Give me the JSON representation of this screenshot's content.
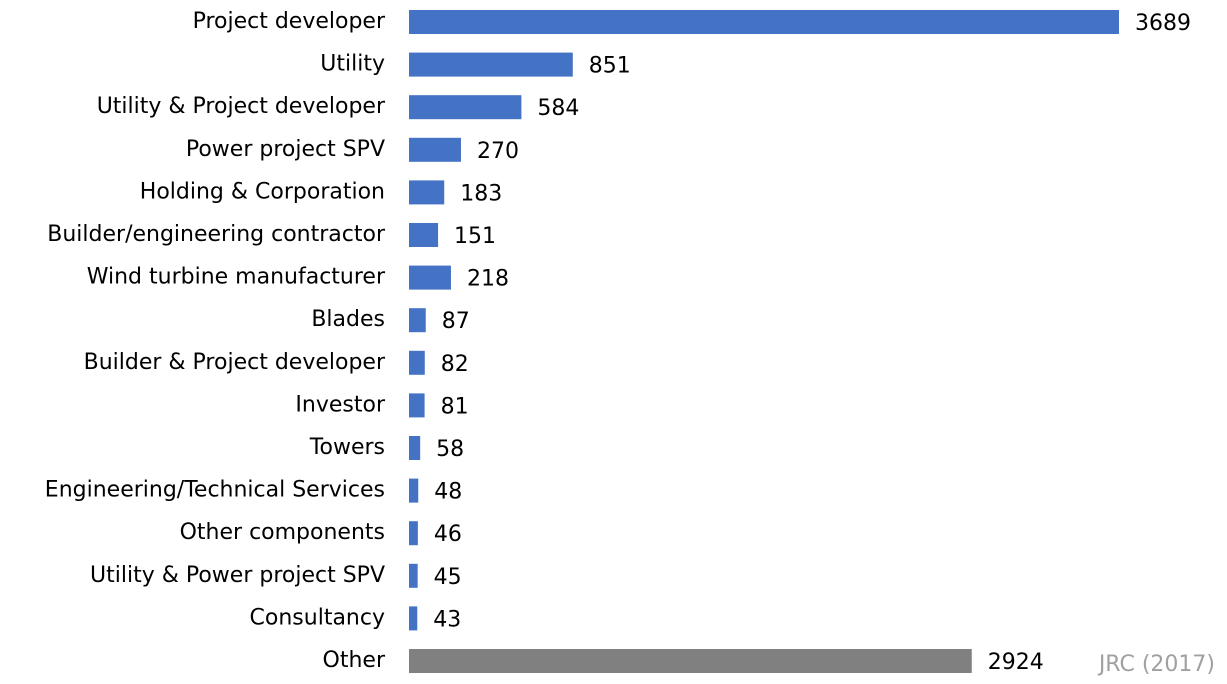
{
  "chart_data": {
    "type": "bar",
    "orientation": "horizontal",
    "categories": [
      "Project developer",
      "Utility",
      "Utility & Project developer",
      "Power project SPV",
      "Holding & Corporation",
      "Builder/engineering contractor",
      "Wind turbine manufacturer",
      "Blades",
      "Builder & Project developer",
      "Investor",
      "Towers",
      "Engineering/Technical Services",
      "Other components",
      "Utility & Power project SPV",
      "Consultancy",
      "Other"
    ],
    "values": [
      3689,
      851,
      584,
      270,
      183,
      151,
      218,
      87,
      82,
      81,
      58,
      48,
      46,
      45,
      43,
      2924
    ],
    "colors": [
      "#4472c4",
      "#4472c4",
      "#4472c4",
      "#4472c4",
      "#4472c4",
      "#4472c4",
      "#4472c4",
      "#4472c4",
      "#4472c4",
      "#4472c4",
      "#4472c4",
      "#4472c4",
      "#4472c4",
      "#4472c4",
      "#4472c4",
      "#808080"
    ],
    "annotation": "JRC (2017)"
  }
}
